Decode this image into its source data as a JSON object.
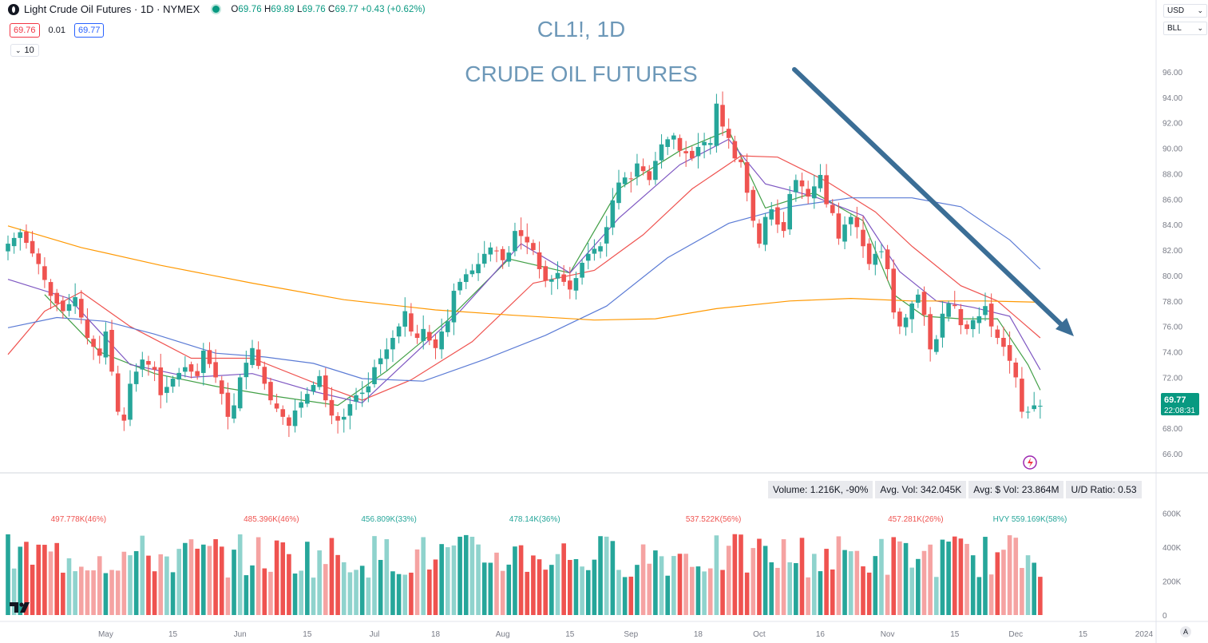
{
  "header": {
    "title": "Light Crude Oil Futures · 1D · NYMEX",
    "ohlc": {
      "o": "69.76",
      "h": "69.89",
      "l": "69.76",
      "c": "69.77",
      "chg": "+0.43 (+0.62%)"
    },
    "bid": "69.76",
    "spread": "0.01",
    "ask": "69.77",
    "indicator_value": "10"
  },
  "currency_select": "USD",
  "unit_select": "BLL",
  "annotation": {
    "line1": "CL1!, 1D",
    "line2": "CRUDE OIL FUTURES"
  },
  "price_label": {
    "value": "69.77",
    "countdown": "22:08:31"
  },
  "volume_stats": {
    "volume": "Volume: 1.216K, -90%",
    "avg_vol": "Avg. Vol: 342.045K",
    "avg_dollar_vol": "Avg: $ Vol: 23.864M",
    "ud_ratio": "U/D Ratio: 0.53"
  },
  "colors": {
    "up": "#26a69a",
    "down": "#ef5350",
    "vol_up_light": "#8fd3cd",
    "vol_down_light": "#f5a3a2",
    "ma_green": "#43a047",
    "ma_purple": "#7e57c2",
    "ma_red": "#ef5350",
    "ma_blue": "#5b7bd5",
    "ma_orange": "#ff9800",
    "arrow": "#3b6e96",
    "annotation": "#6d98b8",
    "axis_text": "#787b86",
    "price_tag": "#089981"
  },
  "chart_data": [
    {
      "type": "candlestick",
      "ylim": [
        64.5,
        98
      ],
      "y_ticks": [
        "66.00",
        "68.00",
        "70.00",
        "72.00",
        "74.00",
        "76.00",
        "78.00",
        "80.00",
        "82.00",
        "84.00",
        "86.00",
        "88.00",
        "90.00",
        "92.00",
        "94.00",
        "96.00"
      ],
      "x_ticks": [
        "May",
        "15",
        "Jun",
        "15",
        "Jul",
        "18",
        "Aug",
        "15",
        "Sep",
        "18",
        "Oct",
        "16",
        "Nov",
        "15",
        "Dec",
        "15",
        "2024"
      ],
      "x_tick_bars": [
        16,
        27,
        38,
        49,
        60,
        70,
        81,
        92,
        102,
        113,
        123,
        133,
        144,
        155,
        165,
        176,
        186
      ],
      "last_bar": 169,
      "anchors_close": [
        [
          0,
          82.5
        ],
        [
          2,
          83.4
        ],
        [
          5,
          80.9
        ],
        [
          7,
          78.4
        ],
        [
          9,
          77.2
        ],
        [
          11,
          78.3
        ],
        [
          13,
          75.1
        ],
        [
          15,
          73.7
        ],
        [
          16,
          75.6
        ],
        [
          18,
          69.3
        ],
        [
          19,
          68.6
        ],
        [
          20,
          71.5
        ],
        [
          22,
          73.4
        ],
        [
          24,
          72.6
        ],
        [
          25,
          70.6
        ],
        [
          27,
          71.9
        ],
        [
          29,
          72.8
        ],
        [
          31,
          72.1
        ],
        [
          32,
          74.1
        ],
        [
          34,
          72.0
        ],
        [
          35,
          70.7
        ],
        [
          36,
          68.9
        ],
        [
          37,
          69.8
        ],
        [
          38,
          72.0
        ],
        [
          40,
          74.3
        ],
        [
          42,
          71.5
        ],
        [
          43,
          70.2
        ],
        [
          45,
          68.9
        ],
        [
          46,
          68.2
        ],
        [
          47,
          69.4
        ],
        [
          49,
          70.7
        ],
        [
          51,
          72.1
        ],
        [
          52,
          70.2
        ],
        [
          53,
          69.0
        ],
        [
          54,
          68.6
        ],
        [
          55,
          68.9
        ],
        [
          56,
          69.9
        ],
        [
          57,
          70.6
        ],
        [
          58,
          70.8
        ],
        [
          59,
          71.3
        ],
        [
          60,
          72.8
        ],
        [
          62,
          74.2
        ],
        [
          64,
          76.0
        ],
        [
          65,
          77.2
        ],
        [
          66,
          75.6
        ],
        [
          67,
          75.1
        ],
        [
          68,
          75.8
        ],
        [
          69,
          74.9
        ],
        [
          70,
          74.3
        ],
        [
          71,
          75.6
        ],
        [
          72,
          76.4
        ],
        [
          73,
          78.8
        ],
        [
          74,
          79.5
        ],
        [
          75,
          80.1
        ],
        [
          76,
          80.4
        ],
        [
          77,
          80.9
        ],
        [
          78,
          81.7
        ],
        [
          79,
          82.2
        ],
        [
          80,
          81.9
        ],
        [
          81,
          81.2
        ],
        [
          82,
          81.8
        ],
        [
          83,
          83.5
        ],
        [
          84,
          83.1
        ],
        [
          85,
          82.6
        ],
        [
          86,
          82.0
        ],
        [
          87,
          80.5
        ],
        [
          88,
          79.6
        ],
        [
          89,
          79.7
        ],
        [
          90,
          80.2
        ],
        [
          91,
          79.5
        ],
        [
          92,
          78.9
        ],
        [
          93,
          79.8
        ],
        [
          94,
          81.0
        ],
        [
          95,
          81.7
        ],
        [
          96,
          82.1
        ],
        [
          97,
          82.3
        ],
        [
          98,
          83.8
        ],
        [
          99,
          85.9
        ],
        [
          100,
          87.3
        ],
        [
          101,
          87.7
        ],
        [
          102,
          87.6
        ],
        [
          103,
          88.8
        ],
        [
          104,
          88.2
        ],
        [
          105,
          87.5
        ],
        [
          106,
          89.0
        ],
        [
          107,
          90.3
        ],
        [
          108,
          90.7
        ],
        [
          109,
          91.0
        ],
        [
          110,
          89.8
        ],
        [
          111,
          89.6
        ],
        [
          112,
          89.2
        ],
        [
          113,
          90.1
        ],
        [
          114,
          90.5
        ],
        [
          115,
          90.4
        ],
        [
          116,
          93.5
        ],
        [
          117,
          91.7
        ],
        [
          118,
          90.8
        ],
        [
          119,
          89.2
        ],
        [
          120,
          88.9
        ],
        [
          121,
          86.5
        ],
        [
          122,
          84.3
        ],
        [
          123,
          82.5
        ],
        [
          124,
          84.6
        ],
        [
          125,
          85.2
        ],
        [
          126,
          84.0
        ],
        [
          127,
          83.5
        ],
        [
          128,
          86.4
        ],
        [
          129,
          87.5
        ],
        [
          130,
          87.0
        ],
        [
          131,
          86.2
        ],
        [
          132,
          87.0
        ],
        [
          133,
          87.9
        ],
        [
          134,
          85.6
        ],
        [
          135,
          84.9
        ],
        [
          136,
          82.9
        ],
        [
          137,
          84.0
        ],
        [
          138,
          84.6
        ],
        [
          139,
          83.8
        ],
        [
          140,
          82.3
        ],
        [
          141,
          80.9
        ],
        [
          142,
          81.7
        ],
        [
          143,
          81.9
        ],
        [
          144,
          80.5
        ],
        [
          145,
          77.1
        ],
        [
          146,
          76.0
        ],
        [
          147,
          76.7
        ],
        [
          148,
          77.8
        ],
        [
          149,
          78.5
        ],
        [
          150,
          76.9
        ],
        [
          151,
          74.2
        ],
        [
          152,
          75.0
        ],
        [
          153,
          77.0
        ],
        [
          154,
          77.8
        ],
        [
          155,
          77.6
        ],
        [
          156,
          76.1
        ],
        [
          157,
          75.8
        ],
        [
          158,
          76.5
        ],
        [
          159,
          76.8
        ],
        [
          160,
          77.6
        ],
        [
          161,
          76.0
        ],
        [
          162,
          75.1
        ],
        [
          163,
          74.4
        ],
        [
          164,
          73.3
        ],
        [
          165,
          72.0
        ],
        [
          166,
          69.3
        ],
        [
          167,
          69.3
        ],
        [
          168,
          69.8
        ],
        [
          169,
          69.77
        ]
      ],
      "ma_series": [
        {
          "color": "ma_green",
          "points": [
            [
              6,
              78.5
            ],
            [
              15,
              74
            ],
            [
              24,
              72.3
            ],
            [
              34,
              71.3
            ],
            [
              44,
              70.5
            ],
            [
              54,
              69.8
            ],
            [
              62,
              72.5
            ],
            [
              72,
              76.5
            ],
            [
              82,
              81.3
            ],
            [
              92,
              80.2
            ],
            [
              100,
              86.8
            ],
            [
              110,
              89.8
            ],
            [
              118,
              91.4
            ],
            [
              124,
              85.3
            ],
            [
              132,
              86.5
            ],
            [
              140,
              84.3
            ],
            [
              145,
              78.5
            ],
            [
              150,
              76.8
            ],
            [
              156,
              76.6
            ],
            [
              162,
              76.6
            ],
            [
              167,
              73
            ],
            [
              169,
              71
            ]
          ]
        },
        {
          "color": "ma_purple",
          "points": [
            [
              0,
              79.7
            ],
            [
              10,
              78.2
            ],
            [
              20,
              73
            ],
            [
              30,
              72
            ],
            [
              40,
              72.3
            ],
            [
              50,
              70.9
            ],
            [
              58,
              70
            ],
            [
              66,
              73.6
            ],
            [
              74,
              77.2
            ],
            [
              84,
              82.5
            ],
            [
              92,
              80.2
            ],
            [
              100,
              84.5
            ],
            [
              110,
              88.7
            ],
            [
              118,
              90.7
            ],
            [
              124,
              87.2
            ],
            [
              132,
              86.2
            ],
            [
              140,
              84.7
            ],
            [
              146,
              80.3
            ],
            [
              152,
              78
            ],
            [
              158,
              77.5
            ],
            [
              164,
              76.8
            ],
            [
              169,
              72.6
            ]
          ]
        },
        {
          "color": "ma_red",
          "points": [
            [
              0,
              73.8
            ],
            [
              6,
              77.2
            ],
            [
              12,
              78.7
            ],
            [
              20,
              76
            ],
            [
              30,
              73.5
            ],
            [
              40,
              73.5
            ],
            [
              50,
              71.6
            ],
            [
              58,
              70.2
            ],
            [
              66,
              71.8
            ],
            [
              76,
              74.8
            ],
            [
              86,
              79.4
            ],
            [
              96,
              80.4
            ],
            [
              104,
              83.2
            ],
            [
              112,
              86.8
            ],
            [
              120,
              89.4
            ],
            [
              126,
              89.3
            ],
            [
              134,
              87.4
            ],
            [
              142,
              85
            ],
            [
              148,
              82.3
            ],
            [
              156,
              79.2
            ],
            [
              162,
              78
            ],
            [
              169,
              75.1
            ]
          ]
        },
        {
          "color": "ma_blue",
          "points": [
            [
              0,
              75.9
            ],
            [
              8,
              76.7
            ],
            [
              16,
              76.4
            ],
            [
              24,
              75.4
            ],
            [
              34,
              73.9
            ],
            [
              42,
              73.6
            ],
            [
              50,
              73.1
            ],
            [
              58,
              71.9
            ],
            [
              68,
              71.7
            ],
            [
              78,
              73.4
            ],
            [
              88,
              75.3
            ],
            [
              98,
              77.6
            ],
            [
              108,
              81.4
            ],
            [
              118,
              84.1
            ],
            [
              128,
              85.4
            ],
            [
              138,
              86.1
            ],
            [
              148,
              86.1
            ],
            [
              156,
              85.4
            ],
            [
              164,
              82.8
            ],
            [
              169,
              80.5
            ]
          ]
        },
        {
          "color": "ma_orange",
          "points": [
            [
              0,
              83.9
            ],
            [
              12,
              82.2
            ],
            [
              25,
              80.8
            ],
            [
              40,
              79.4
            ],
            [
              55,
              78.1
            ],
            [
              70,
              77.3
            ],
            [
              82,
              76.9
            ],
            [
              96,
              76.5
            ],
            [
              106,
              76.6
            ],
            [
              116,
              77.4
            ],
            [
              128,
              78
            ],
            [
              138,
              78.2
            ],
            [
              148,
              78
            ],
            [
              160,
              78
            ],
            [
              169,
              77.9
            ]
          ]
        }
      ]
    },
    {
      "type": "bar",
      "name": "volume",
      "ylim": [
        0,
        650000
      ],
      "y_ticks": [
        "0",
        "200K",
        "400K",
        "600K"
      ],
      "labels": [
        {
          "text": "497.778K(46%)",
          "bar": 15,
          "color": "down"
        },
        {
          "text": "485.396K(46%)",
          "bar": 56,
          "color": "down"
        },
        {
          "text": "456.809K(33%)",
          "bar": 81,
          "color": "up"
        },
        {
          "text": "478.14K(36%)",
          "bar": 112,
          "color": "up"
        },
        {
          "text": "537.522K(56%)",
          "bar": 150,
          "color": "down"
        },
        {
          "text": "457.281K(26%)",
          "bar": 193,
          "color": "down"
        },
        {
          "text": "HVY 559.169K(58%)",
          "bar": 219,
          "color": "up"
        }
      ]
    }
  ]
}
